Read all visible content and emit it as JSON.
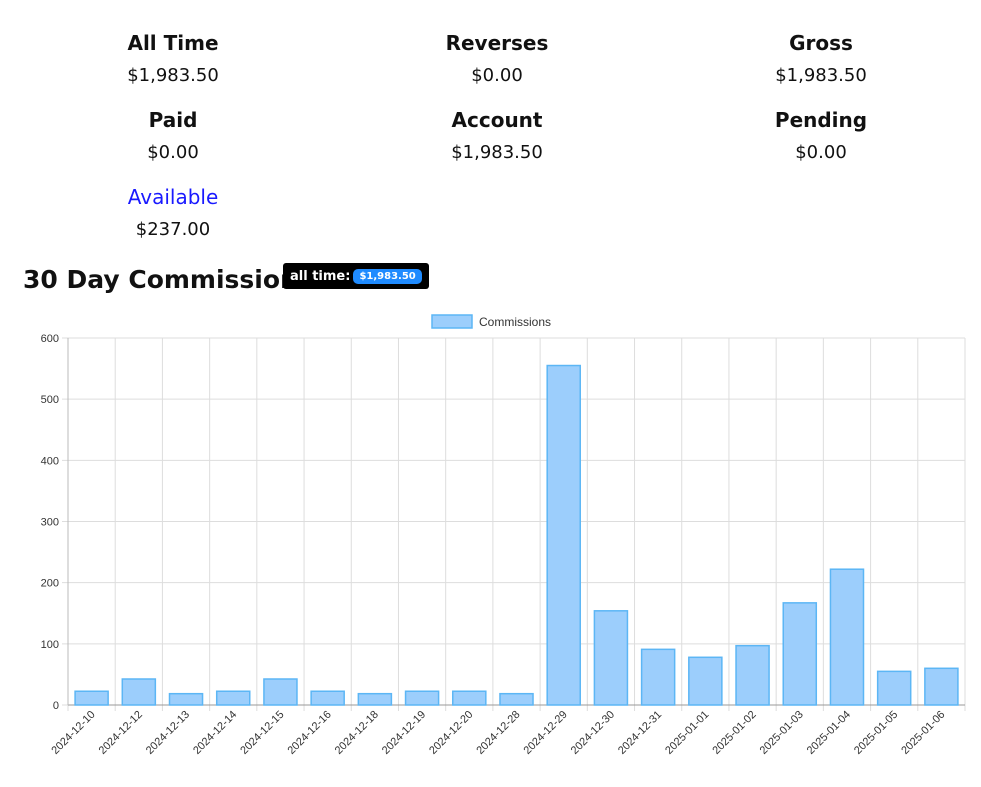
{
  "stats": {
    "all_time": {
      "label": "All Time",
      "value": "$1,983.50"
    },
    "reverses": {
      "label": "Reverses",
      "value": "$0.00"
    },
    "gross": {
      "label": "Gross",
      "value": "$1,983.50"
    },
    "paid": {
      "label": "Paid",
      "value": "$0.00"
    },
    "account": {
      "label": "Account",
      "value": "$1,983.50"
    },
    "pending": {
      "label": "Pending",
      "value": "$0.00"
    },
    "available": {
      "label": "Available",
      "value": "$237.00"
    }
  },
  "section": {
    "title": "30 Day Commissions",
    "badge_label": "all time:",
    "badge_value": "$1,983.50"
  },
  "colors": {
    "bar_fill": "#9ccefc",
    "bar_stroke": "#5cb6f5",
    "grid": "#dddddd",
    "available": "#1a1aff",
    "badge_pill": "#1f8bff"
  },
  "chart_data": {
    "type": "bar",
    "title": "",
    "xlabel": "",
    "ylabel": "",
    "legend": [
      "Commissions"
    ],
    "legend_position": "top-center",
    "ylim": [
      0,
      600
    ],
    "yticks": [
      0,
      100,
      200,
      300,
      400,
      500,
      600
    ],
    "grid": true,
    "categories": [
      "2024-12-10",
      "2024-12-12",
      "2024-12-13",
      "2024-12-14",
      "2024-12-15",
      "2024-12-16",
      "2024-12-18",
      "2024-12-19",
      "2024-12-20",
      "2024-12-28",
      "2024-12-29",
      "2024-12-30",
      "2024-12-31",
      "2025-01-01",
      "2025-01-02",
      "2025-01-03",
      "2025-01-04",
      "2025-01-05",
      "2025-01-06"
    ],
    "series": [
      {
        "name": "Commissions",
        "values": [
          22.5,
          42.5,
          18.5,
          22.5,
          42.5,
          22.5,
          18.5,
          22.5,
          22.5,
          18.5,
          555,
          154,
          91,
          78,
          97,
          167,
          222,
          55,
          60
        ]
      }
    ]
  }
}
